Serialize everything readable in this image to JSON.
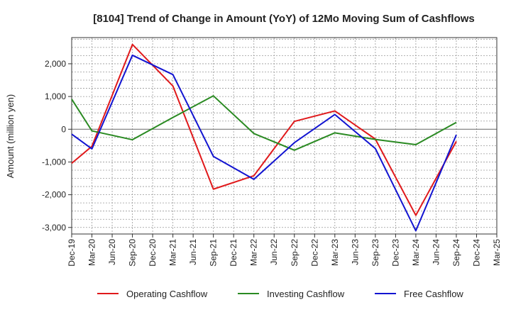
{
  "chart_data": {
    "type": "line",
    "title": "[8104]  Trend of Change in Amount (YoY) of 12Mo Moving Sum of Cashflows",
    "xlabel": "",
    "ylabel": "Amount (million yen)",
    "ylim": [
      -3200,
      2800
    ],
    "yticks": [
      -3000,
      -2000,
      -1000,
      0,
      1000,
      2000
    ],
    "ytick_labels": [
      "-3,000",
      "-2,000",
      "-1,000",
      "0",
      "1,000",
      "2,000"
    ],
    "categories": [
      "Dec-19",
      "Mar-20",
      "Jun-20",
      "Sep-20",
      "Dec-20",
      "Mar-21",
      "Jun-21",
      "Sep-21",
      "Dec-21",
      "Mar-22",
      "Jun-22",
      "Sep-22",
      "Dec-22",
      "Mar-23",
      "Jun-23",
      "Sep-23",
      "Dec-23",
      "Mar-24",
      "Jun-24",
      "Sep-24",
      "Dec-24",
      "Mar-25"
    ],
    "grid": true,
    "legend_position": "bottom",
    "series": [
      {
        "name": "Operating Cashflow",
        "color": "#e0191b",
        "values": [
          -1040,
          -520,
          null,
          2590,
          null,
          1320,
          null,
          -1830,
          null,
          -1420,
          null,
          240,
          null,
          560,
          null,
          -300,
          null,
          -2630,
          null,
          -370,
          null,
          null
        ]
      },
      {
        "name": "Investing Cashflow",
        "color": "#2a8a22",
        "values": [
          920,
          -50,
          null,
          -320,
          null,
          360,
          null,
          1020,
          null,
          -130,
          null,
          -640,
          null,
          -110,
          null,
          -310,
          null,
          -470,
          null,
          210,
          null,
          null
        ]
      },
      {
        "name": "Free Cashflow",
        "color": "#1214d1",
        "values": [
          -150,
          -600,
          null,
          2260,
          null,
          1670,
          null,
          -830,
          null,
          -1530,
          null,
          -410,
          null,
          450,
          null,
          -590,
          null,
          -3100,
          null,
          -170,
          null,
          null
        ]
      }
    ]
  }
}
